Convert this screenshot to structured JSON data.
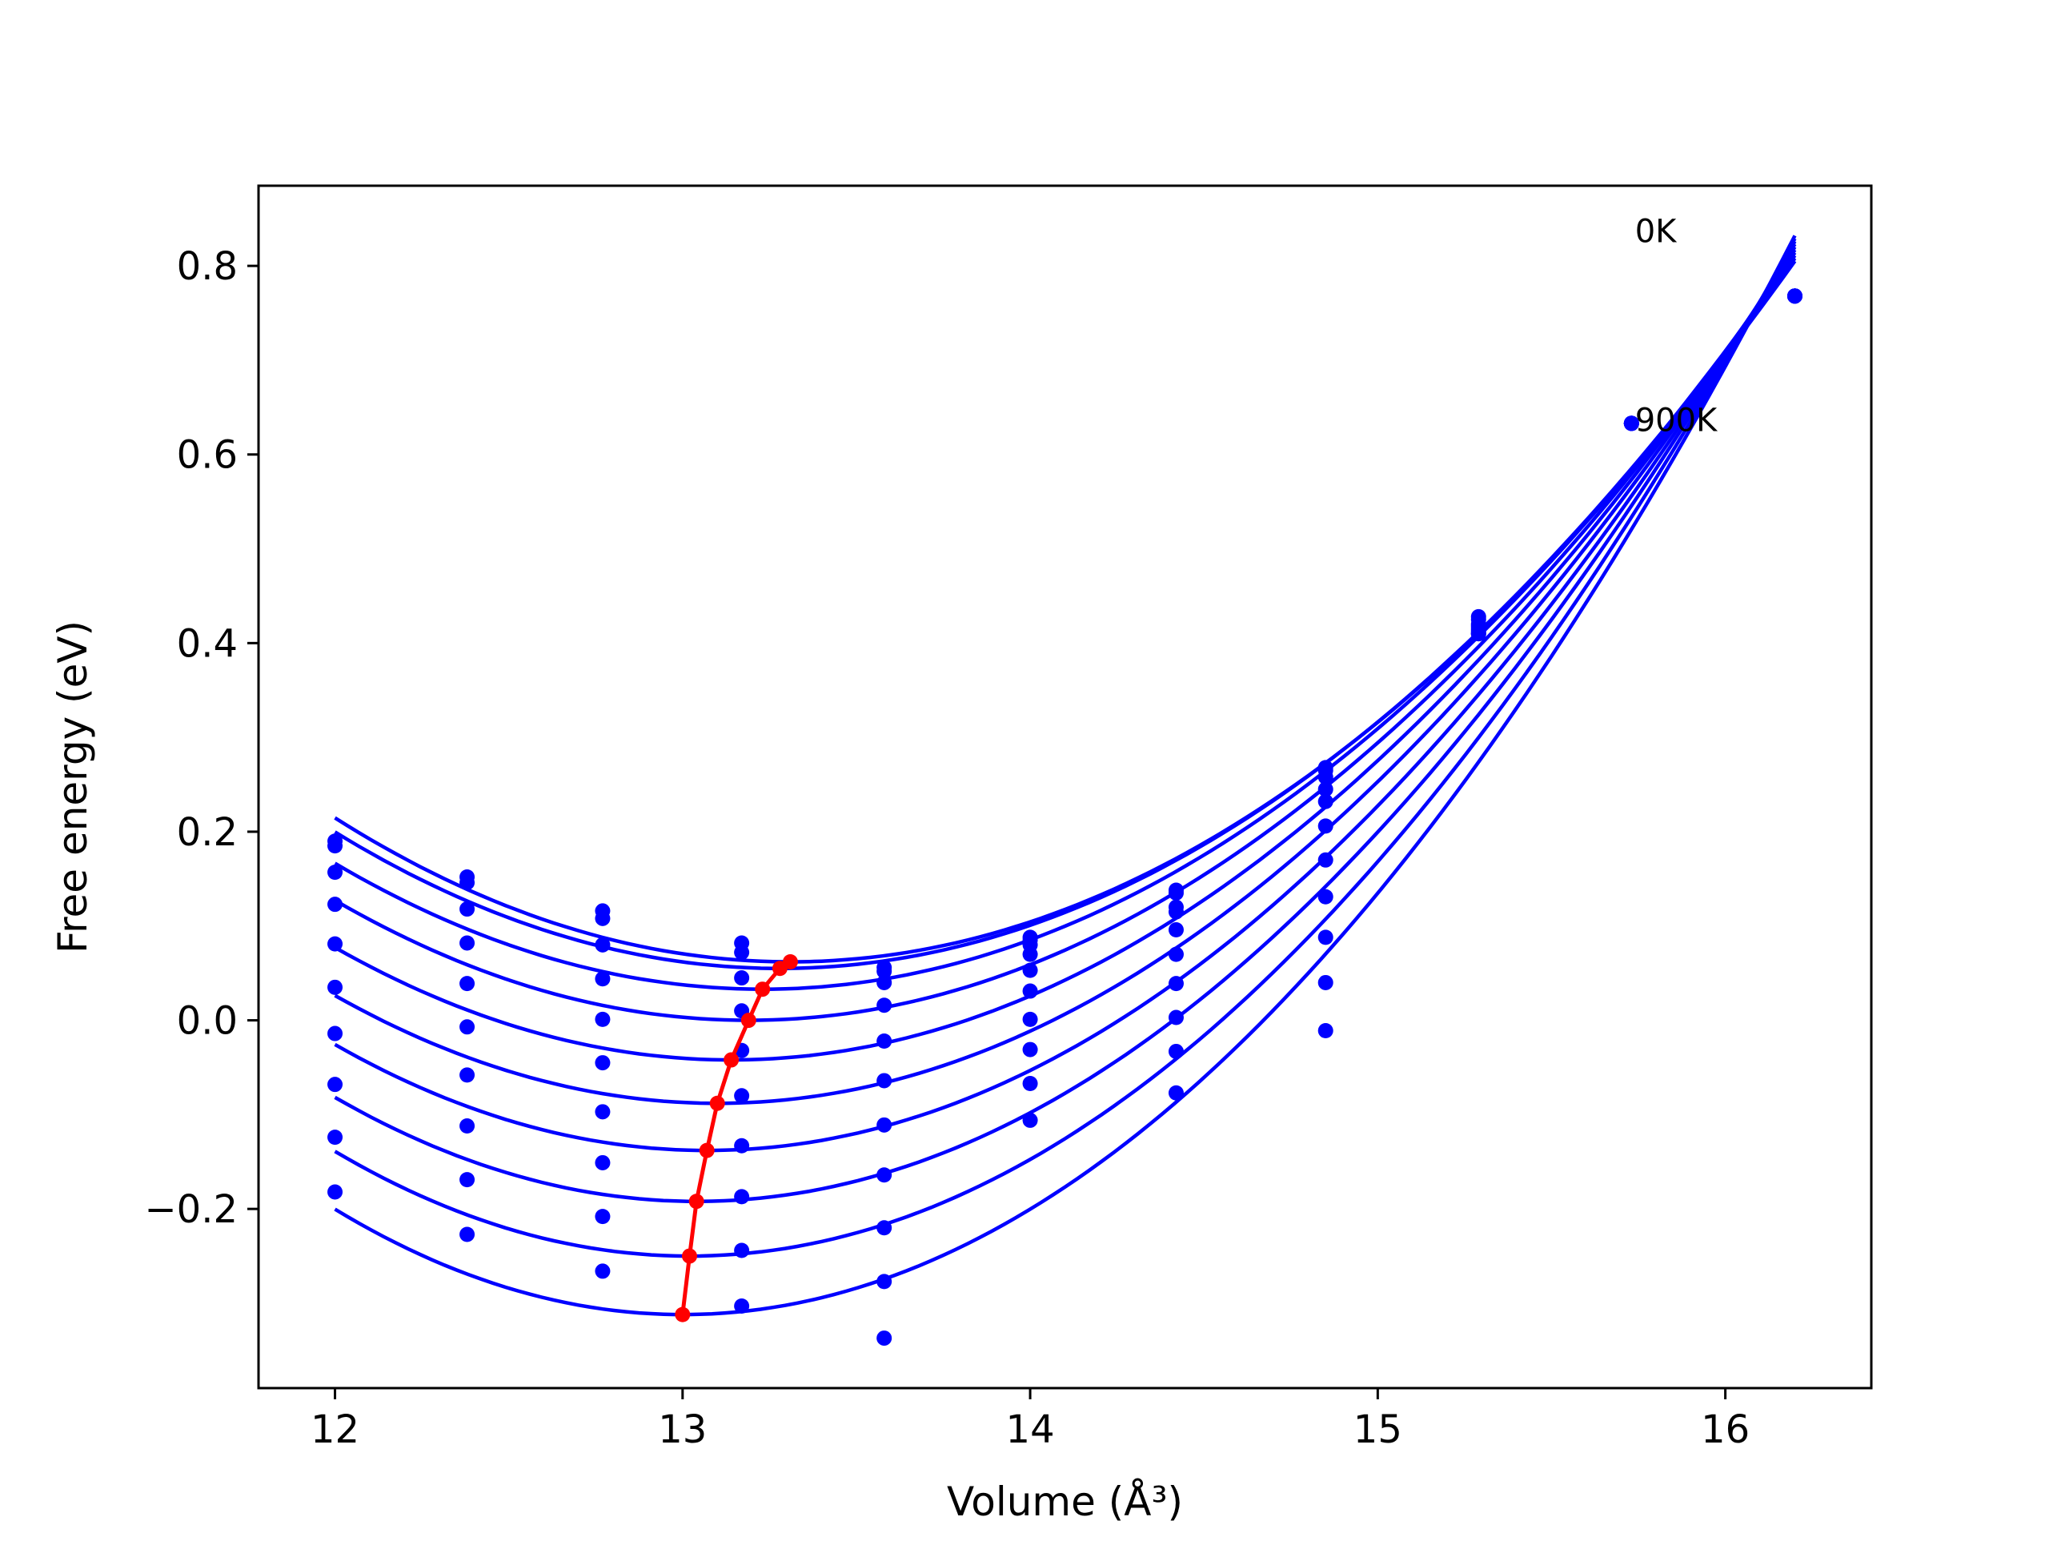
{
  "chart_data": {
    "type": "scatter",
    "xlabel": "Volume (Å³)",
    "ylabel": "Free energy (eV)",
    "xlim": [
      11.78,
      16.42
    ],
    "ylim": [
      -0.39,
      0.885
    ],
    "xticks": [
      12,
      13,
      14,
      15,
      16
    ],
    "yticks": [
      -0.2,
      0.0,
      0.2,
      0.4,
      0.6,
      0.8
    ],
    "xtick_labels": [
      "12",
      "13",
      "14",
      "15",
      "16"
    ],
    "ytick_labels": [
      "−0.2",
      "0.0",
      "0.2",
      "0.4",
      "0.6",
      "0.8"
    ],
    "annotations": [
      {
        "text": "0K",
        "x": 15.74,
        "y": 0.825
      },
      {
        "text": "900K",
        "x": 15.74,
        "y": 0.625
      }
    ],
    "colors": {
      "series": "#0000ff",
      "equilibrium": "#ff0000",
      "axes": "#000000"
    },
    "volumes": [
      12.0,
      12.38,
      12.77,
      13.17,
      13.58,
      14.0,
      14.42,
      14.85,
      15.29,
      15.73,
      16.2
    ],
    "series": [
      {
        "min_volume": 13.31,
        "min_energy": 0.062,
        "end_energy": 0.805,
        "points": [
          0.19,
          0.152,
          0.116,
          0.082,
          0.056,
          0.088,
          0.138,
          0.268,
          0.428,
          0.633,
          0.768
        ]
      },
      {
        "min_volume": 13.28,
        "min_energy": 0.055,
        "end_energy": 0.808,
        "points": [
          0.185,
          0.146,
          0.108,
          0.072,
          0.052,
          0.085,
          0.135,
          0.265,
          0.425,
          0.633,
          0.768
        ]
      },
      {
        "min_volume": 13.23,
        "min_energy": 0.033,
        "end_energy": 0.811,
        "points": [
          0.157,
          0.118,
          0.08,
          0.045,
          0.04,
          0.08,
          0.12,
          0.258,
          0.42,
          0.633,
          0.768
        ]
      },
      {
        "min_volume": 13.19,
        "min_energy": 0.0,
        "end_energy": 0.814,
        "points": [
          0.123,
          0.082,
          0.044,
          0.01,
          0.016,
          0.07,
          0.115,
          0.245,
          0.418,
          0.633,
          0.768
        ]
      },
      {
        "min_volume": 13.14,
        "min_energy": -0.042,
        "end_energy": 0.817,
        "points": [
          0.081,
          0.039,
          0.001,
          -0.032,
          -0.022,
          0.053,
          0.096,
          0.232,
          0.416,
          0.633,
          0.768
        ]
      },
      {
        "min_volume": 13.1,
        "min_energy": -0.088,
        "end_energy": 0.82,
        "points": [
          0.035,
          -0.007,
          -0.045,
          -0.08,
          -0.064,
          0.031,
          0.07,
          0.206,
          0.414,
          0.633,
          0.768
        ]
      },
      {
        "min_volume": 13.07,
        "min_energy": -0.138,
        "end_energy": 0.823,
        "points": [
          -0.014,
          -0.058,
          -0.097,
          -0.133,
          -0.111,
          0.001,
          0.039,
          0.17,
          0.412,
          0.633,
          0.768
        ]
      },
      {
        "min_volume": 13.04,
        "min_energy": -0.192,
        "end_energy": 0.826,
        "points": [
          -0.068,
          -0.112,
          -0.151,
          -0.187,
          -0.164,
          -0.031,
          0.003,
          0.131,
          0.41,
          0.633,
          0.768
        ]
      },
      {
        "min_volume": 13.02,
        "min_energy": -0.25,
        "end_energy": 0.829,
        "points": [
          -0.124,
          -0.169,
          -0.208,
          -0.244,
          -0.22,
          -0.067,
          -0.033,
          0.088,
          0.41,
          0.633,
          0.768
        ]
      },
      {
        "min_volume": 13.0,
        "min_energy": -0.312,
        "end_energy": 0.832,
        "points": [
          -0.182,
          -0.227,
          -0.266,
          -0.303,
          -0.277,
          -0.106,
          -0.077,
          0.04,
          0.41,
          0.633,
          0.768
        ]
      }
    ],
    "extra_points": [
      {
        "x": 13.58,
        "y": -0.337
      },
      {
        "x": 14.85,
        "y": -0.011
      }
    ],
    "equilibrium_curve": {
      "x": [
        13.31,
        13.28,
        13.23,
        13.19,
        13.14,
        13.1,
        13.07,
        13.04,
        13.02,
        13.0
      ],
      "y": [
        0.062,
        0.055,
        0.033,
        0.0,
        -0.042,
        -0.088,
        -0.138,
        -0.192,
        -0.25,
        -0.312
      ]
    }
  }
}
